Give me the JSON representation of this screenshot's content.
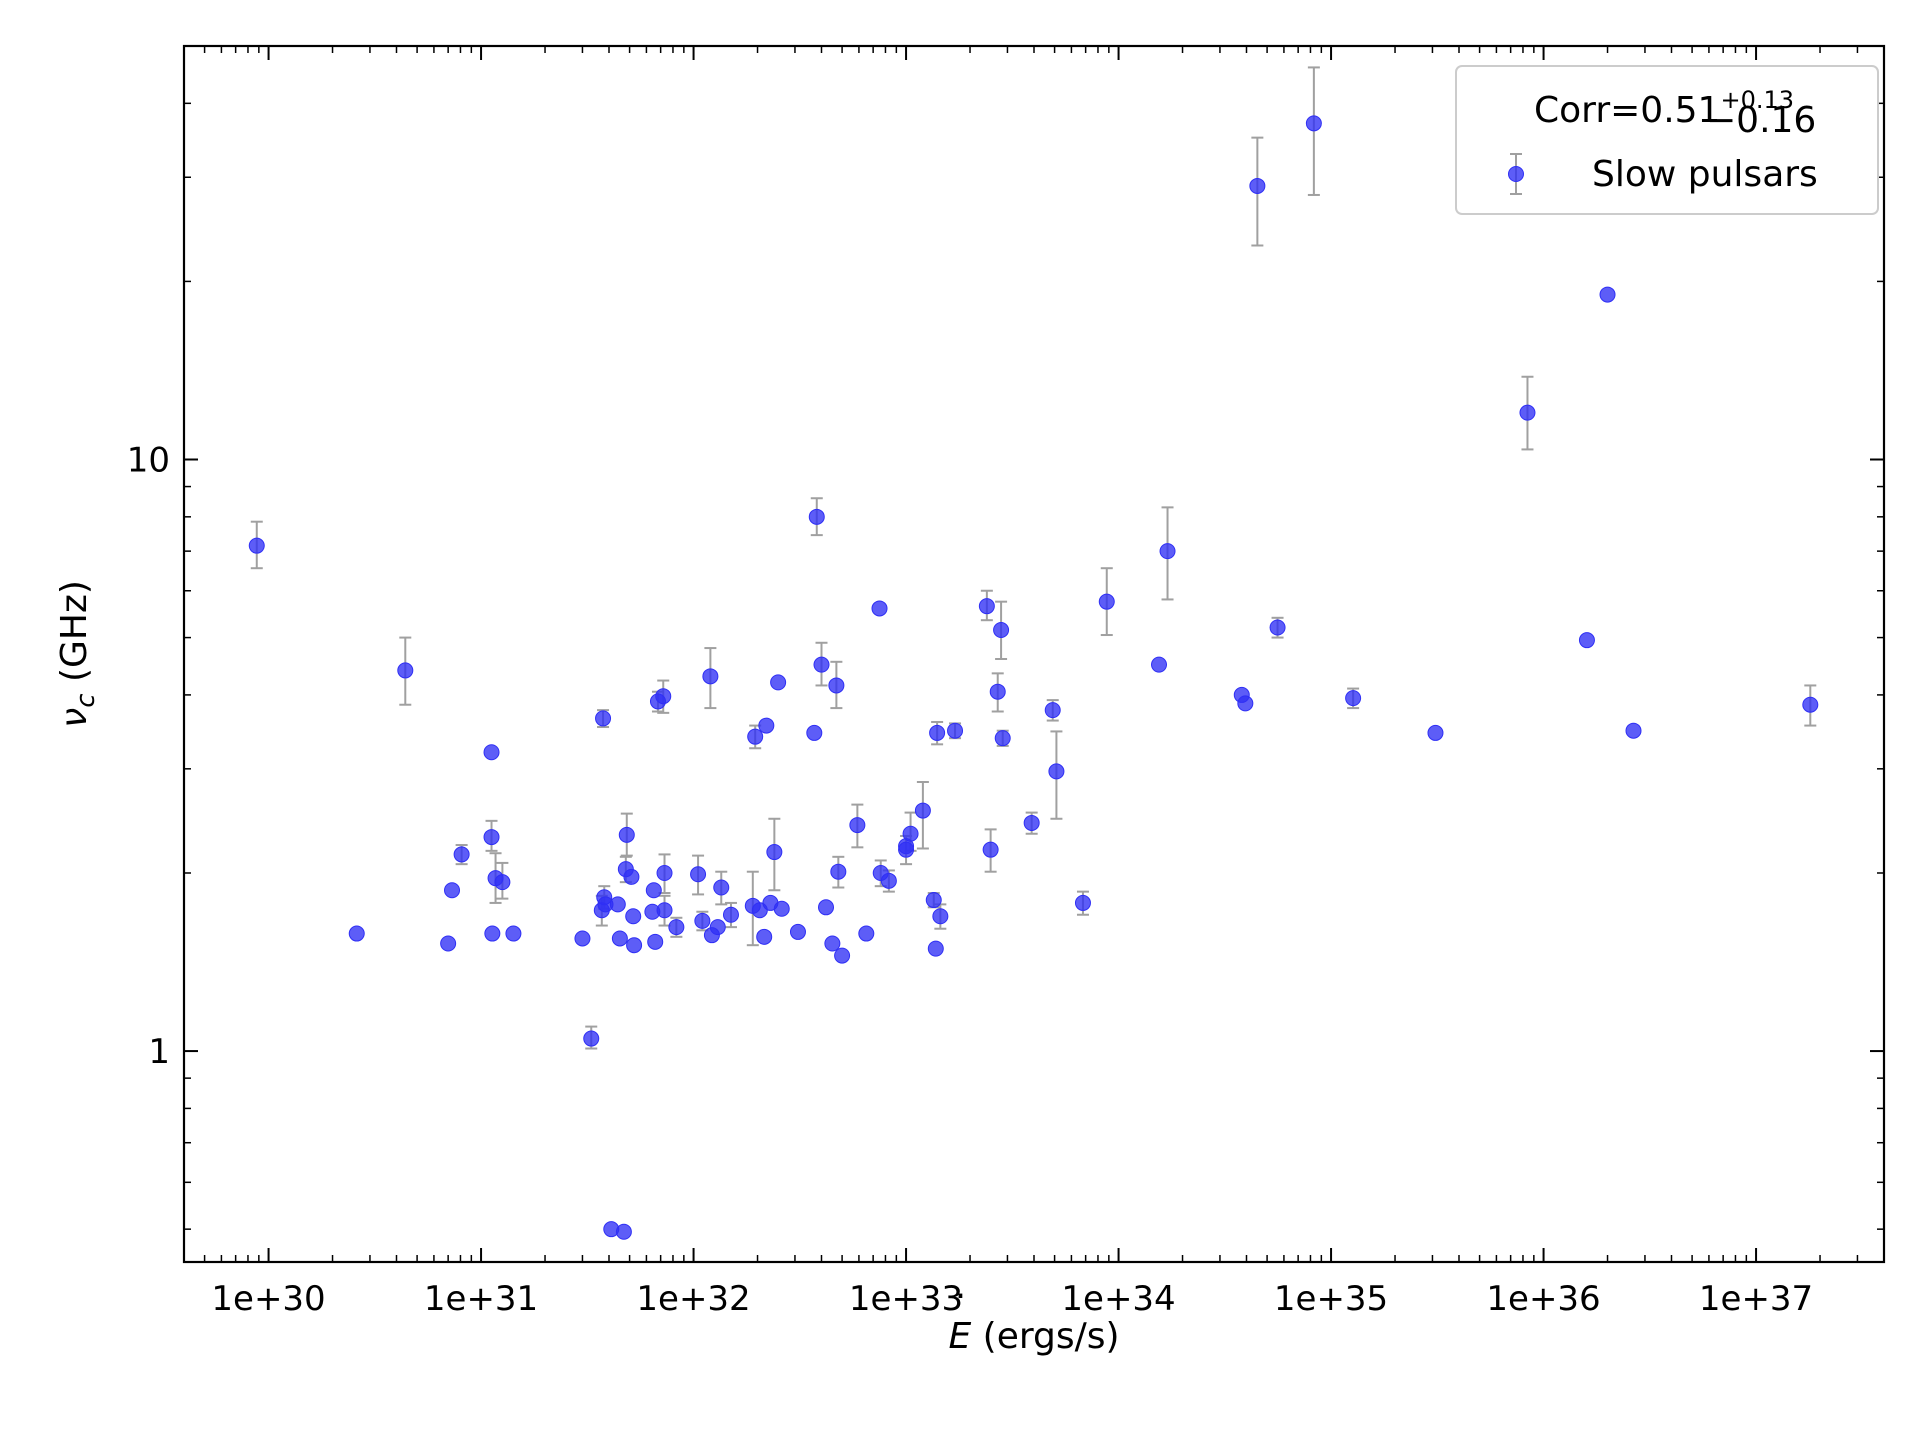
{
  "chart_data": {
    "type": "scatter",
    "xscale": "log",
    "yscale": "log",
    "xlim": [
      4e+29,
      4e+37
    ],
    "ylim": [
      0.44,
      50
    ],
    "xlabel_main": "E",
    "xlabel_unit": " (ergs/s)",
    "ylabel_main": "ν",
    "ylabel_sub": "c",
    "ylabel_unit": " (GHz)",
    "x_tick_values": [
      1e+30,
      1e+31,
      1e+32,
      1e+33,
      1e+34,
      1e+35,
      1e+36,
      1e+37
    ],
    "x_tick_labels": [
      "1e+30",
      "1e+31",
      "1e+32",
      "1e+33",
      "1e+34",
      "1e+35",
      "1e+36",
      "1e+37"
    ],
    "y_tick_values": [
      1,
      10
    ],
    "y_tick_labels": [
      "1",
      "10"
    ],
    "legend": {
      "position": "top-right",
      "corr_label": "Corr=0.51",
      "corr_sup": "+0.13",
      "corr_sub": "−0.16",
      "series_label": "Slow pulsars"
    },
    "colors": {
      "marker": "#2f2ff5",
      "errorbar": "#a0a0a0"
    },
    "series": [
      {
        "name": "Slow pulsars",
        "points": [
          {
            "x": 8.8e+29,
            "y": 7.15,
            "err": [
              0.6,
              0.7
            ]
          },
          {
            "x": 2.6e+30,
            "y": 1.58
          },
          {
            "x": 4.4e+30,
            "y": 4.4,
            "err": [
              0.55,
              0.6
            ]
          },
          {
            "x": 7e+30,
            "y": 1.52
          },
          {
            "x": 7.3e+30,
            "y": 1.87
          },
          {
            "x": 8.1e+30,
            "y": 2.15,
            "err": [
              0.08,
              0.08
            ]
          },
          {
            "x": 1.12e+31,
            "y": 3.2
          },
          {
            "x": 1.12e+31,
            "y": 2.3,
            "err": [
              0.12,
              0.15
            ]
          },
          {
            "x": 1.13e+31,
            "y": 1.58
          },
          {
            "x": 1.17e+31,
            "y": 1.96,
            "err": [
              0.18,
              0.2
            ]
          },
          {
            "x": 1.26e+31,
            "y": 1.93,
            "err": [
              0.12,
              0.15
            ]
          },
          {
            "x": 1.42e+31,
            "y": 1.58
          },
          {
            "x": 3e+31,
            "y": 1.55
          },
          {
            "x": 3.3e+31,
            "y": 1.05,
            "err": [
              0.04,
              0.05
            ]
          },
          {
            "x": 3.7e+31,
            "y": 1.73,
            "err": [
              0.1,
              0.1
            ]
          },
          {
            "x": 3.75e+31,
            "y": 3.65,
            "err": [
              0.12,
              0.12
            ]
          },
          {
            "x": 3.8e+31,
            "y": 1.82,
            "err": [
              0.08,
              0.08
            ]
          },
          {
            "x": 3.85e+31,
            "y": 1.77
          },
          {
            "x": 4.1e+31,
            "y": 0.5
          },
          {
            "x": 4.4e+31,
            "y": 1.77
          },
          {
            "x": 4.5e+31,
            "y": 1.55
          },
          {
            "x": 4.7e+31,
            "y": 0.495
          },
          {
            "x": 4.8e+31,
            "y": 2.03,
            "err": [
              0.1,
              0.1
            ]
          },
          {
            "x": 4.85e+31,
            "y": 2.32,
            "err": [
              0.18,
              0.2
            ]
          },
          {
            "x": 5.1e+31,
            "y": 1.97
          },
          {
            "x": 5.2e+31,
            "y": 1.69
          },
          {
            "x": 5.25e+31,
            "y": 1.51
          },
          {
            "x": 6.4e+31,
            "y": 1.72
          },
          {
            "x": 6.5e+31,
            "y": 1.87
          },
          {
            "x": 6.6e+31,
            "y": 1.53
          },
          {
            "x": 6.8e+31,
            "y": 3.9,
            "err": [
              0.15,
              0.15
            ]
          },
          {
            "x": 7.2e+31,
            "y": 3.98,
            "err": [
              0.25,
              0.25
            ]
          },
          {
            "x": 7.3e+31,
            "y": 2.0,
            "err": [
              0.15,
              0.15
            ]
          },
          {
            "x": 7.3e+31,
            "y": 1.73,
            "err": [
              0.1,
              0.1
            ]
          },
          {
            "x": 8.3e+31,
            "y": 1.62,
            "err": [
              0.06,
              0.06
            ]
          },
          {
            "x": 1.05e+32,
            "y": 1.99,
            "err": [
              0.15,
              0.15
            ]
          },
          {
            "x": 1.1e+32,
            "y": 1.66,
            "err": [
              0.06,
              0.06
            ]
          },
          {
            "x": 1.2e+32,
            "y": 4.3,
            "err": [
              0.5,
              0.5
            ]
          },
          {
            "x": 1.22e+32,
            "y": 1.57
          },
          {
            "x": 1.3e+32,
            "y": 1.62
          },
          {
            "x": 1.35e+32,
            "y": 1.89,
            "err": [
              0.12,
              0.12
            ]
          },
          {
            "x": 1.5e+32,
            "y": 1.7,
            "err": [
              0.08,
              0.08
            ]
          },
          {
            "x": 1.9e+32,
            "y": 1.76,
            "err": [
              0.25,
              0.25
            ]
          },
          {
            "x": 1.95e+32,
            "y": 3.4,
            "err": [
              0.15,
              0.15
            ]
          },
          {
            "x": 2.05e+32,
            "y": 1.73
          },
          {
            "x": 2.15e+32,
            "y": 1.56
          },
          {
            "x": 2.2e+32,
            "y": 3.55
          },
          {
            "x": 2.3e+32,
            "y": 1.78
          },
          {
            "x": 2.4e+32,
            "y": 2.17,
            "err": [
              0.3,
              0.3
            ]
          },
          {
            "x": 2.5e+32,
            "y": 4.2
          },
          {
            "x": 2.6e+32,
            "y": 1.74
          },
          {
            "x": 3.1e+32,
            "y": 1.59
          },
          {
            "x": 3.7e+32,
            "y": 3.45
          },
          {
            "x": 3.8e+32,
            "y": 8.0,
            "err": [
              0.55,
              0.6
            ]
          },
          {
            "x": 4e+32,
            "y": 4.5,
            "err": [
              0.35,
              0.4
            ]
          },
          {
            "x": 4.2e+32,
            "y": 1.75
          },
          {
            "x": 4.5e+32,
            "y": 1.52
          },
          {
            "x": 4.7e+32,
            "y": 4.15,
            "err": [
              0.35,
              0.4
            ]
          },
          {
            "x": 4.8e+32,
            "y": 2.01,
            "err": [
              0.12,
              0.12
            ]
          },
          {
            "x": 5e+32,
            "y": 1.45
          },
          {
            "x": 5.9e+32,
            "y": 2.41,
            "err": [
              0.2,
              0.2
            ]
          },
          {
            "x": 6.5e+32,
            "y": 1.58
          },
          {
            "x": 7.5e+32,
            "y": 5.6
          },
          {
            "x": 7.6e+32,
            "y": 2.0,
            "err": [
              0.1,
              0.1
            ]
          },
          {
            "x": 8.3e+32,
            "y": 1.94,
            "err": [
              0.08,
              0.08
            ]
          },
          {
            "x": 1e+33,
            "y": 2.22
          },
          {
            "x": 1e+33,
            "y": 2.19,
            "err": [
              0.12,
              0.12
            ]
          },
          {
            "x": 1.05e+33,
            "y": 2.33,
            "err": [
              0.15,
              0.2
            ]
          },
          {
            "x": 1.2e+33,
            "y": 2.55,
            "err": [
              0.35,
              0.3
            ]
          },
          {
            "x": 1.35e+33,
            "y": 1.8,
            "err": [
              0.05,
              0.05
            ]
          },
          {
            "x": 1.38e+33,
            "y": 1.49
          },
          {
            "x": 1.4e+33,
            "y": 3.45,
            "err": [
              0.15,
              0.15
            ]
          },
          {
            "x": 1.45e+33,
            "y": 1.69,
            "err": [
              0.08,
              0.08
            ]
          },
          {
            "x": 1.7e+33,
            "y": 3.48,
            "err": [
              0.1,
              0.1
            ]
          },
          {
            "x": 2.4e+33,
            "y": 5.65,
            "err": [
              0.3,
              0.35
            ]
          },
          {
            "x": 2.5e+33,
            "y": 2.19,
            "err": [
              0.18,
              0.18
            ]
          },
          {
            "x": 2.7e+33,
            "y": 4.05,
            "err": [
              0.3,
              0.3
            ]
          },
          {
            "x": 2.8e+33,
            "y": 5.15,
            "err": [
              0.55,
              0.6
            ]
          },
          {
            "x": 2.85e+33,
            "y": 3.38,
            "err": [
              0.1,
              0.1
            ]
          },
          {
            "x": 3.9e+33,
            "y": 2.43,
            "err": [
              0.1,
              0.1
            ]
          },
          {
            "x": 4.9e+33,
            "y": 3.77,
            "err": [
              0.15,
              0.15
            ]
          },
          {
            "x": 5.1e+33,
            "y": 2.97,
            "err": [
              0.5,
              0.5
            ]
          },
          {
            "x": 6.8e+33,
            "y": 1.78,
            "err": [
              0.08,
              0.08
            ]
          },
          {
            "x": 8.8e+33,
            "y": 5.75,
            "err": [
              0.7,
              0.8
            ]
          },
          {
            "x": 1.55e+34,
            "y": 4.5
          },
          {
            "x": 1.7e+34,
            "y": 7.0,
            "err": [
              1.2,
              1.3
            ]
          },
          {
            "x": 3.8e+34,
            "y": 4.0
          },
          {
            "x": 3.95e+34,
            "y": 3.87
          },
          {
            "x": 4.5e+34,
            "y": 29.0,
            "err": [
              6.0,
              6.0
            ]
          },
          {
            "x": 5.6e+34,
            "y": 5.2,
            "err": [
              0.2,
              0.2
            ]
          },
          {
            "x": 8.3e+34,
            "y": 37.0,
            "err": [
              9.0,
              9.0
            ]
          },
          {
            "x": 1.27e+35,
            "y": 3.95,
            "err": [
              0.15,
              0.15
            ]
          },
          {
            "x": 3.1e+35,
            "y": 3.45
          },
          {
            "x": 8.4e+35,
            "y": 12.0,
            "err": [
              1.6,
              1.8
            ]
          },
          {
            "x": 1.6e+36,
            "y": 4.95
          },
          {
            "x": 2e+36,
            "y": 19.0
          },
          {
            "x": 2.65e+36,
            "y": 3.48
          },
          {
            "x": 1.8e+37,
            "y": 3.85,
            "err": [
              0.3,
              0.3
            ]
          }
        ]
      }
    ]
  }
}
